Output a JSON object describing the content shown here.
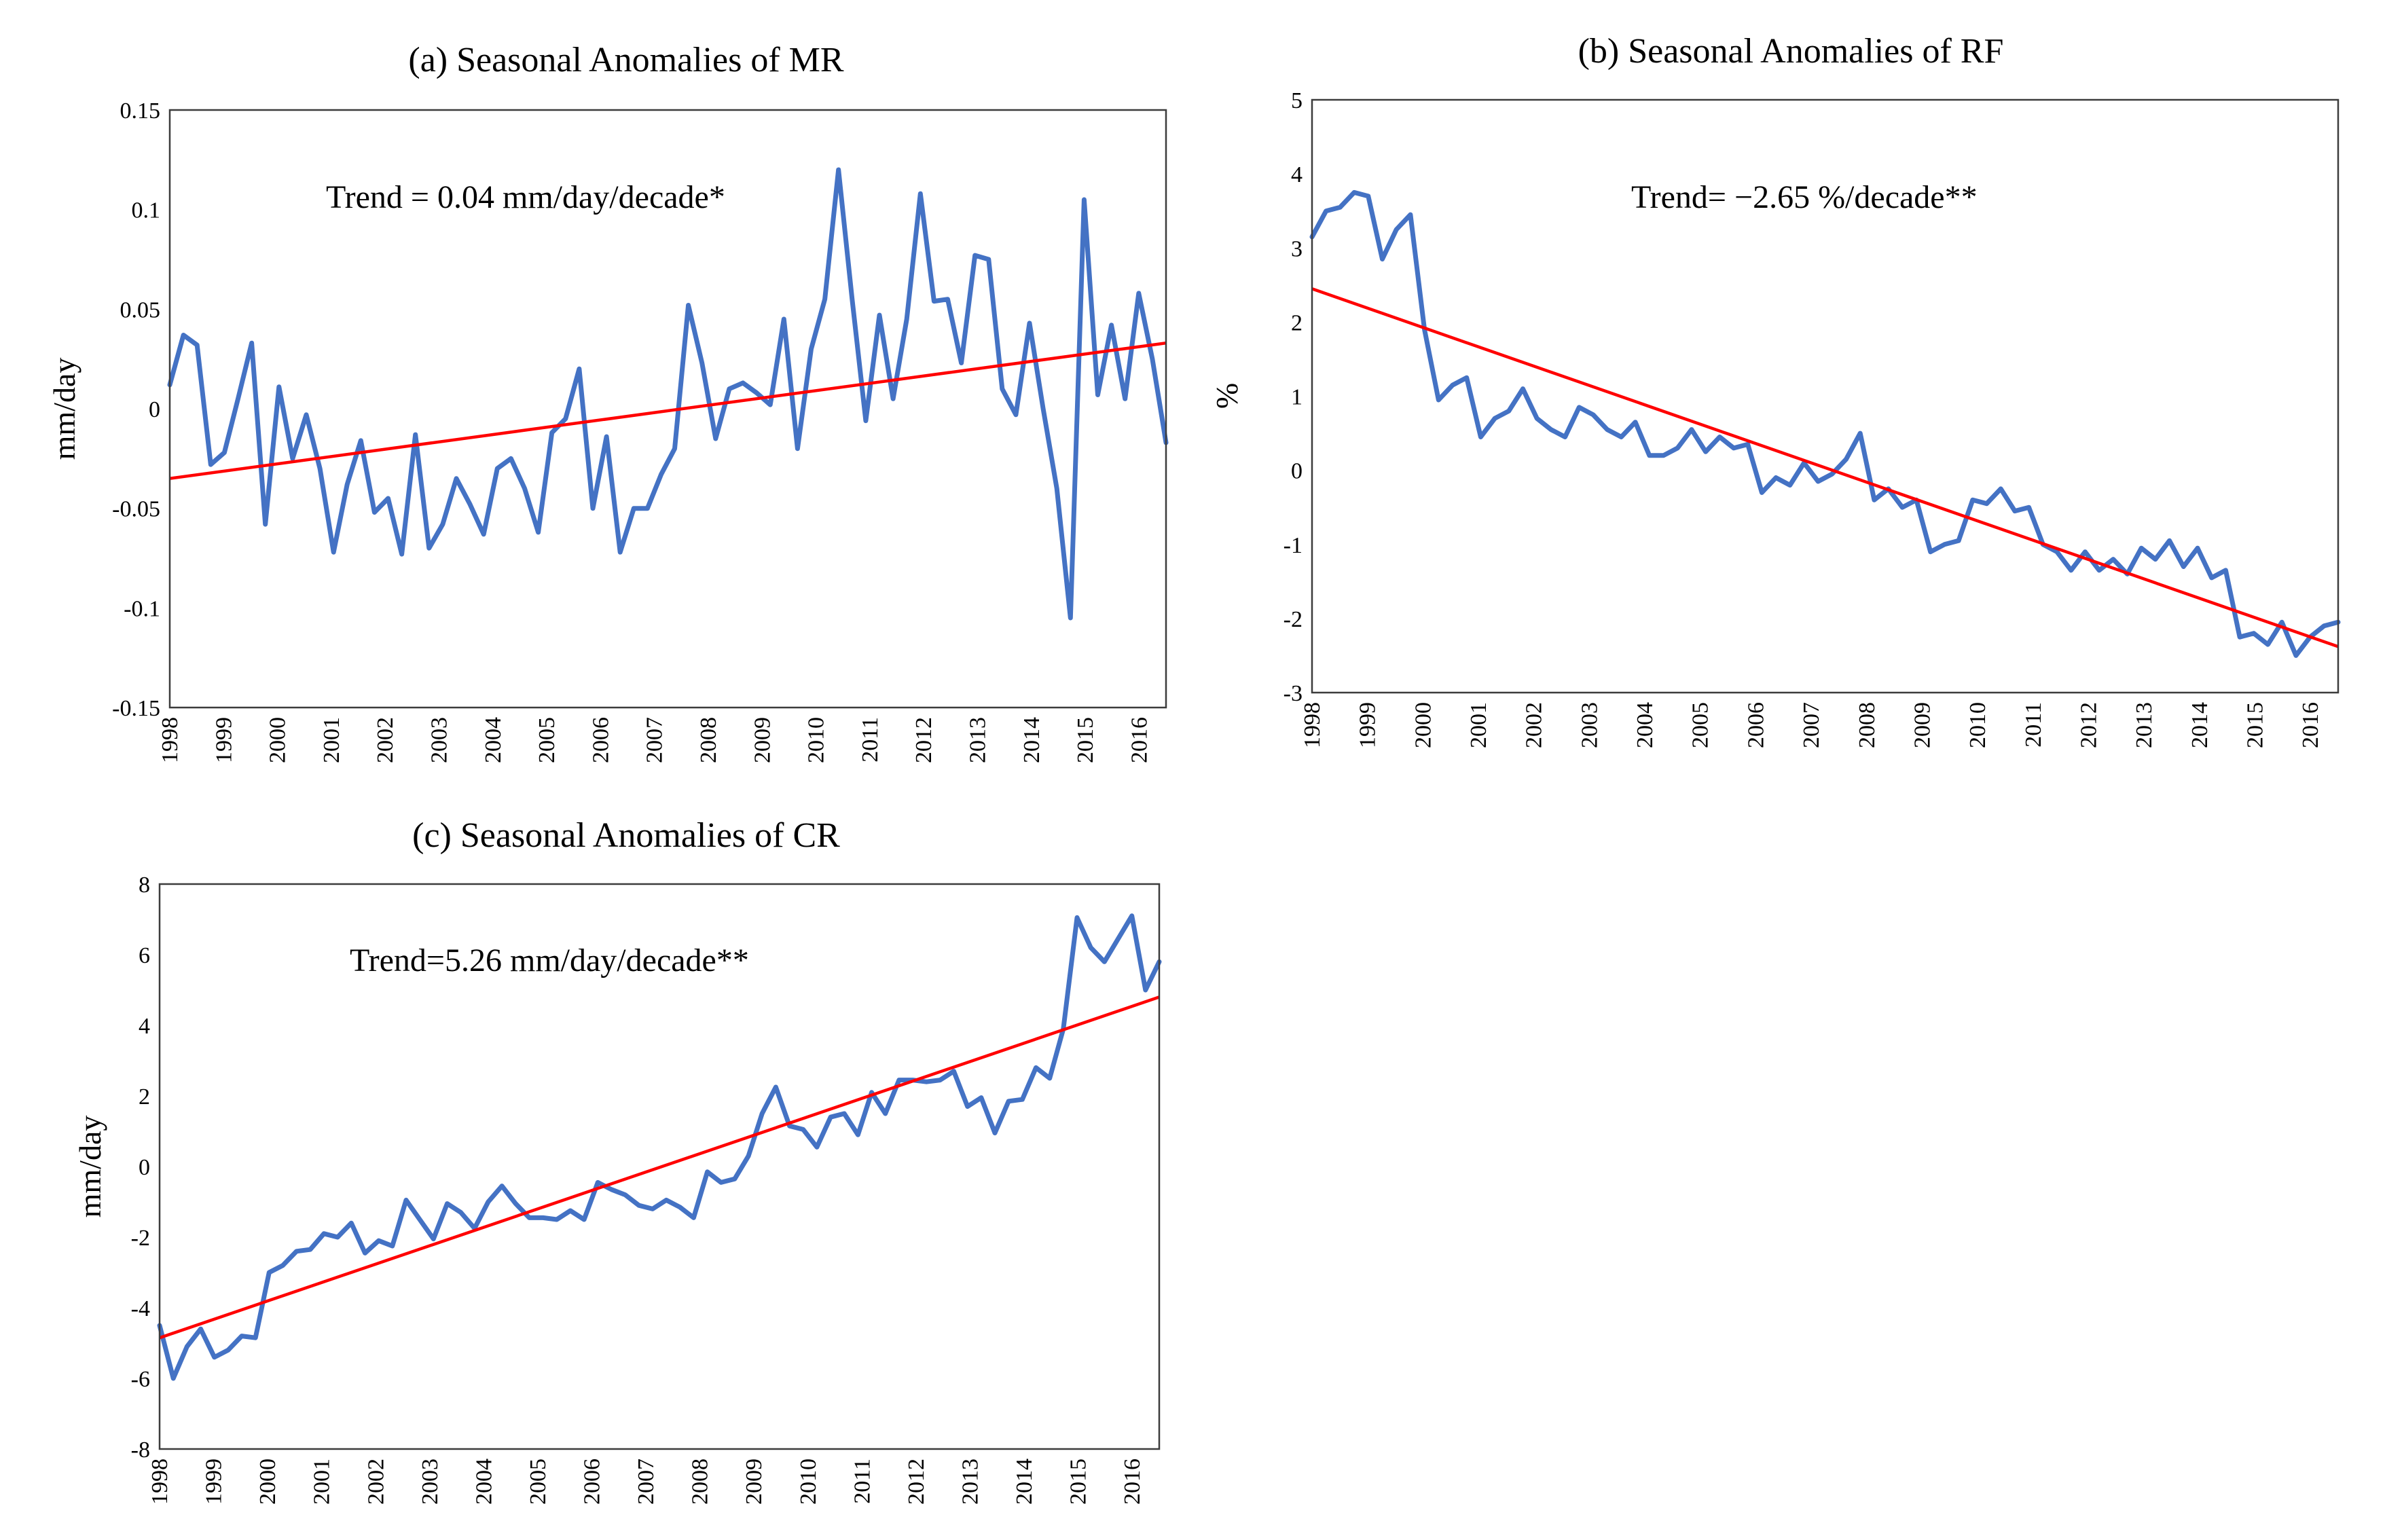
{
  "chart_data": [
    {
      "type": "line",
      "title": "(a) Seasonal Anomalies of MR",
      "ylabel": "mm/day",
      "xlabel": "",
      "ylim": [
        -0.15,
        0.15
      ],
      "yticks": [
        -0.15,
        -0.1,
        -0.05,
        0,
        0.05,
        0.1,
        0.15
      ],
      "ytick_labels": [
        "-0.15",
        "-0.1",
        "-0.05",
        "0",
        "0.05",
        "0.1",
        "0.15"
      ],
      "years": [
        "1998",
        "1999",
        "2000",
        "2001",
        "2002",
        "2003",
        "2004",
        "2005",
        "2006",
        "2007",
        "2008",
        "2009",
        "2010",
        "2011",
        "2012",
        "2013",
        "2014",
        "2015",
        "2016"
      ],
      "annotation": "Trend = 0.04 mm/day/decade*",
      "trend": {
        "start": -0.035,
        "end": 0.033
      },
      "series": [
        {
          "name": "MR seasonal anomaly",
          "color": "#4472C4",
          "values": [
            0.012,
            0.037,
            0.032,
            -0.028,
            -0.022,
            0.005,
            0.033,
            -0.058,
            0.011,
            -0.025,
            -0.003,
            -0.03,
            -0.072,
            -0.038,
            -0.016,
            -0.052,
            -0.045,
            -0.073,
            -0.013,
            -0.07,
            -0.058,
            -0.035,
            -0.048,
            -0.063,
            -0.03,
            -0.025,
            -0.04,
            -0.062,
            -0.012,
            -0.005,
            0.02,
            -0.05,
            -0.014,
            -0.072,
            -0.05,
            -0.05,
            -0.033,
            -0.02,
            0.052,
            0.023,
            -0.015,
            0.01,
            0.013,
            0.008,
            0.002,
            0.045,
            -0.02,
            0.03,
            0.055,
            0.12,
            0.055,
            -0.006,
            0.047,
            0.005,
            0.045,
            0.108,
            0.054,
            0.055,
            0.023,
            0.077,
            0.075,
            0.01,
            -0.003,
            0.043,
            0.0,
            -0.04,
            -0.105,
            0.105,
            0.007,
            0.042,
            0.005,
            0.058,
            0.025,
            -0.017
          ]
        }
      ]
    },
    {
      "type": "line",
      "title": "(b) Seasonal Anomalies of RF",
      "ylabel": "%",
      "xlabel": "",
      "ylim": [
        -3,
        5
      ],
      "yticks": [
        -3,
        -2,
        -1,
        0,
        1,
        2,
        3,
        4,
        5
      ],
      "ytick_labels": [
        "-3",
        "-2",
        "-1",
        "0",
        "1",
        "2",
        "3",
        "4",
        "5"
      ],
      "years": [
        "1998",
        "1999",
        "2000",
        "2001",
        "2002",
        "2003",
        "2004",
        "2005",
        "2006",
        "2007",
        "2008",
        "2009",
        "2010",
        "2011",
        "2012",
        "2013",
        "2014",
        "2015",
        "2016"
      ],
      "annotation": "Trend= −2.65 %/decade**",
      "trend": {
        "start": 2.45,
        "end": -2.38
      },
      "series": [
        {
          "name": "RF seasonal anomaly",
          "color": "#4472C4",
          "values": [
            3.15,
            3.5,
            3.55,
            3.75,
            3.7,
            2.85,
            3.25,
            3.45,
            1.9,
            0.95,
            1.15,
            1.25,
            0.45,
            0.7,
            0.8,
            1.1,
            0.7,
            0.55,
            0.45,
            0.85,
            0.75,
            0.55,
            0.45,
            0.65,
            0.2,
            0.2,
            0.3,
            0.55,
            0.25,
            0.45,
            0.3,
            0.35,
            -0.3,
            -0.1,
            -0.2,
            0.1,
            -0.15,
            -0.05,
            0.15,
            0.5,
            -0.4,
            -0.25,
            -0.5,
            -0.4,
            -1.1,
            -1.0,
            -0.95,
            -0.4,
            -0.45,
            -0.25,
            -0.55,
            -0.5,
            -1.0,
            -1.1,
            -1.35,
            -1.1,
            -1.35,
            -1.2,
            -1.4,
            -1.05,
            -1.2,
            -0.95,
            -1.3,
            -1.05,
            -1.45,
            -1.35,
            -2.25,
            -2.2,
            -2.35,
            -2.05,
            -2.5,
            -2.25,
            -2.1,
            -2.05
          ]
        }
      ]
    },
    {
      "type": "line",
      "title": "(c) Seasonal Anomalies of CR",
      "ylabel": "mm/day",
      "xlabel": "",
      "ylim": [
        -8,
        8
      ],
      "yticks": [
        -8,
        -6,
        -4,
        -2,
        0,
        2,
        4,
        6,
        8
      ],
      "ytick_labels": [
        "-8",
        "-6",
        "-4",
        "-2",
        "0",
        "2",
        "4",
        "6",
        "8"
      ],
      "years": [
        "1998",
        "1999",
        "2000",
        "2001",
        "2002",
        "2003",
        "2004",
        "2005",
        "2006",
        "2007",
        "2008",
        "2009",
        "2010",
        "2011",
        "2012",
        "2013",
        "2014",
        "2015",
        "2016"
      ],
      "annotation": "Trend=5.26 mm/day/decade**",
      "trend": {
        "start": -4.85,
        "end": 4.8
      },
      "series": [
        {
          "name": "CR seasonal anomaly",
          "color": "#4472C4",
          "values": [
            -4.5,
            -6.0,
            -5.1,
            -4.6,
            -5.4,
            -5.2,
            -4.8,
            -4.85,
            -3.0,
            -2.8,
            -2.4,
            -2.35,
            -1.9,
            -2.0,
            -1.6,
            -2.45,
            -2.1,
            -2.25,
            -0.95,
            -1.5,
            -2.05,
            -1.05,
            -1.3,
            -1.75,
            -1.0,
            -0.55,
            -1.05,
            -1.45,
            -1.45,
            -1.5,
            -1.25,
            -1.5,
            -0.45,
            -0.65,
            -0.8,
            -1.1,
            -1.2,
            -0.95,
            -1.15,
            -1.45,
            -0.15,
            -0.45,
            -0.35,
            0.3,
            1.5,
            2.25,
            1.15,
            1.05,
            0.55,
            1.4,
            1.5,
            0.9,
            2.1,
            1.5,
            2.45,
            2.45,
            2.4,
            2.45,
            2.7,
            1.7,
            1.95,
            0.95,
            1.85,
            1.9,
            2.8,
            2.5,
            3.9,
            7.05,
            6.2,
            5.8,
            6.45,
            7.1,
            5.0,
            5.8
          ]
        }
      ]
    }
  ]
}
